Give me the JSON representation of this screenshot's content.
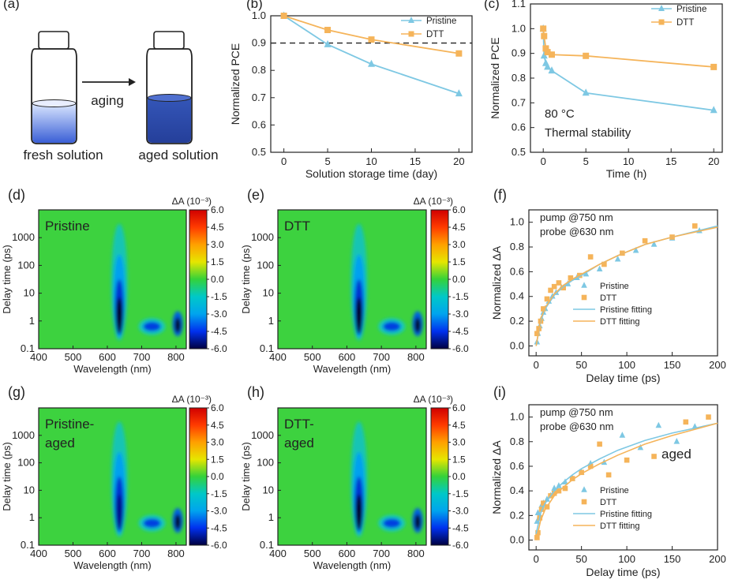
{
  "colors": {
    "pristine": "#7ec8e3",
    "dtt": "#f5b45a",
    "dash": "#222222"
  },
  "panel_labels": [
    "(a)",
    "(b)",
    "(c)",
    "(d)",
    "(e)",
    "(f)",
    "(g)",
    "(h)",
    "(i)"
  ],
  "panel_a": {
    "arrow_label": "aging",
    "fresh_label": "fresh solution",
    "aged_label": "aged solution"
  },
  "chart_data": [
    {
      "id": "b",
      "type": "line",
      "xlabel": "Solution storage time (day)",
      "ylabel": "Normalized PCE",
      "xlim": [
        -1.5,
        21.5
      ],
      "ylim": [
        0.5,
        1.0
      ],
      "xticks": [
        0,
        5,
        10,
        15,
        20
      ],
      "yticks": [
        0.5,
        0.6,
        0.7,
        0.8,
        0.9,
        1.0
      ],
      "hline": 0.9,
      "legend": [
        "Pristine",
        "DTT"
      ],
      "series": [
        {
          "name": "Pristine",
          "marker": "triangle",
          "x": [
            0,
            5,
            10,
            20
          ],
          "y": [
            1.0,
            0.895,
            0.823,
            0.715
          ]
        },
        {
          "name": "DTT",
          "marker": "square",
          "x": [
            0,
            5,
            10,
            20
          ],
          "y": [
            1.0,
            0.948,
            0.913,
            0.862
          ]
        }
      ]
    },
    {
      "id": "c",
      "type": "line",
      "xlabel": "Time (h)",
      "ylabel": "Normalized PCE",
      "xlim": [
        -1.5,
        21.0
      ],
      "ylim": [
        0.5,
        1.1
      ],
      "xticks": [
        0,
        5,
        10,
        15,
        20
      ],
      "yticks": [
        0.5,
        0.6,
        0.7,
        0.8,
        0.9,
        1.0,
        1.1
      ],
      "annotation": [
        "80 °C",
        "Thermal stability"
      ],
      "legend": [
        "Pristine",
        "DTT"
      ],
      "series": [
        {
          "name": "Pristine",
          "marker": "triangle",
          "x": [
            0,
            0.1,
            0.3,
            0.5,
            1,
            5,
            20
          ],
          "y": [
            1.0,
            0.89,
            0.86,
            0.845,
            0.83,
            0.74,
            0.67
          ]
        },
        {
          "name": "DTT",
          "marker": "square",
          "x": [
            0,
            0.1,
            0.3,
            0.5,
            1,
            5,
            20
          ],
          "y": [
            1.0,
            0.97,
            0.92,
            0.905,
            0.895,
            0.89,
            0.845
          ]
        }
      ]
    },
    {
      "id": "d",
      "type": "heatmap",
      "label": "Pristine",
      "xlabel": "Wavelength (nm)",
      "ylabel": "Delay time (ps)",
      "xticks": [
        "400",
        "500",
        "600",
        "700",
        "800"
      ],
      "yticks": [
        "0.1",
        "1",
        "10",
        "100",
        "1000"
      ],
      "colorbar_title": "ΔA (10⁻³)",
      "colorbar_ticks": [
        "6.0",
        "4.5",
        "3.0",
        "1.5",
        "0.0",
        "-1.5",
        "-3.0",
        "-4.5",
        "-6.0"
      ],
      "features": [
        {
          "center_nm": 635,
          "depth": -6.0
        },
        {
          "center_nm": 730,
          "depth": -4.0
        },
        {
          "center_nm": 805,
          "depth": -6.0
        }
      ]
    },
    {
      "id": "e",
      "type": "heatmap",
      "label": "DTT",
      "xlabel": "Wavelength (nm)",
      "ylabel": "Delay time (ps)",
      "xticks": [
        "400",
        "500",
        "600",
        "700",
        "800"
      ],
      "yticks": [
        "0.1",
        "1",
        "10",
        "100",
        "1000"
      ],
      "colorbar_title": "ΔA (10⁻³)",
      "colorbar_ticks": [
        "6.0",
        "4.5",
        "3.0",
        "1.5",
        "0.0",
        "-1.5",
        "-3.0",
        "-4.5",
        "-6.0"
      ],
      "features": [
        {
          "center_nm": 635,
          "depth": -6.0
        },
        {
          "center_nm": 730,
          "depth": -4.0
        },
        {
          "center_nm": 805,
          "depth": -6.0
        }
      ]
    },
    {
      "id": "f",
      "type": "scatter",
      "xlabel": "Delay time (ps)",
      "ylabel": "Normalized ΔA",
      "xlim": [
        -8,
        200
      ],
      "ylim": [
        -0.08,
        1.1
      ],
      "xticks": [
        0,
        50,
        100,
        150,
        200
      ],
      "yticks": [
        0.0,
        0.2,
        0.4,
        0.6,
        0.8,
        1.0
      ],
      "annotation": [
        "pump @750 nm",
        "probe @630 nm"
      ],
      "legend": [
        "Pristine",
        "DTT",
        "Pristine fitting",
        "DTT fitting"
      ],
      "series": [
        {
          "name": "Pristine",
          "marker": "triangle",
          "x": [
            1,
            2,
            4,
            6,
            8,
            10,
            14,
            18,
            22,
            28,
            35,
            45,
            55,
            70,
            90,
            110,
            130,
            150,
            180
          ],
          "y": [
            0.03,
            0.1,
            0.16,
            0.22,
            0.27,
            0.3,
            0.36,
            0.4,
            0.43,
            0.47,
            0.5,
            0.55,
            0.58,
            0.62,
            0.7,
            0.77,
            0.82,
            0.87,
            0.93
          ]
        },
        {
          "name": "DTT",
          "marker": "square",
          "x": [
            1,
            3,
            5,
            8,
            12,
            16,
            20,
            25,
            30,
            38,
            48,
            60,
            75,
            95,
            120,
            150,
            175
          ],
          "y": [
            0.1,
            0.14,
            0.2,
            0.3,
            0.38,
            0.45,
            0.48,
            0.51,
            0.47,
            0.55,
            0.57,
            0.72,
            0.66,
            0.75,
            0.85,
            0.88,
            0.97
          ]
        },
        {
          "name": "Pristine fitting",
          "type": "fit",
          "x": [
            0,
            5,
            10,
            20,
            30,
            40,
            50,
            70,
            90,
            120,
            150,
            200
          ],
          "y": [
            0.0,
            0.2,
            0.3,
            0.41,
            0.48,
            0.53,
            0.57,
            0.66,
            0.73,
            0.82,
            0.88,
            0.97
          ]
        },
        {
          "name": "DTT fitting",
          "type": "fit",
          "x": [
            0,
            5,
            10,
            20,
            30,
            40,
            50,
            70,
            90,
            120,
            150,
            200
          ],
          "y": [
            0.0,
            0.22,
            0.31,
            0.42,
            0.49,
            0.54,
            0.58,
            0.66,
            0.73,
            0.82,
            0.88,
            0.96
          ]
        }
      ]
    },
    {
      "id": "g",
      "type": "heatmap",
      "label": "Pristine-\naged",
      "xlabel": "Wavelength (nm)",
      "ylabel": "Delay time (ps)",
      "xticks": [
        "400",
        "500",
        "600",
        "700",
        "800"
      ],
      "yticks": [
        "0.1",
        "1",
        "10",
        "100",
        "1000"
      ],
      "colorbar_title": "ΔA (10⁻³)",
      "colorbar_ticks": [
        "6.0",
        "4.5",
        "3.0",
        "1.5",
        "0.0",
        "-1.5",
        "-3.0",
        "-4.5",
        "-6.0"
      ],
      "features": [
        {
          "center_nm": 635,
          "depth": -5.0
        },
        {
          "center_nm": 730,
          "depth": -3.5
        },
        {
          "center_nm": 805,
          "depth": -6.0
        }
      ]
    },
    {
      "id": "h",
      "type": "heatmap",
      "label": "DTT-\naged",
      "xlabel": "Wavelength (nm)",
      "ylabel": "Delay time (ps)",
      "xticks": [
        "400",
        "500",
        "600",
        "700",
        "800"
      ],
      "yticks": [
        "0.1",
        "1",
        "10",
        "100",
        "1000"
      ],
      "colorbar_title": "ΔA (10⁻³)",
      "colorbar_ticks": [
        "6.0",
        "4.5",
        "3.0",
        "1.5",
        "0.0",
        "-1.5",
        "-3.0",
        "-4.5",
        "-6.0"
      ],
      "features": [
        {
          "center_nm": 635,
          "depth": -6.0
        },
        {
          "center_nm": 730,
          "depth": -4.0
        },
        {
          "center_nm": 805,
          "depth": -6.0
        }
      ]
    },
    {
      "id": "i",
      "type": "scatter",
      "xlabel": "Delay time (ps)",
      "ylabel": "Normalized ΔA",
      "xlim": [
        -8,
        200
      ],
      "ylim": [
        -0.08,
        1.1
      ],
      "xticks": [
        0,
        50,
        100,
        150,
        200
      ],
      "yticks": [
        0.0,
        0.2,
        0.4,
        0.6,
        0.8,
        1.0
      ],
      "annotation": [
        "pump @750 nm",
        "probe @630 nm"
      ],
      "label": "aged",
      "legend": [
        "Pristine",
        "DTT",
        "Pristine fitting",
        "DTT fitting"
      ],
      "series": [
        {
          "name": "Pristine",
          "marker": "triangle",
          "x": [
            1,
            2,
            4,
            6,
            8,
            12,
            16,
            20,
            25,
            32,
            40,
            50,
            60,
            75,
            95,
            115,
            135,
            155,
            175
          ],
          "y": [
            0.15,
            0.22,
            0.2,
            0.28,
            0.3,
            0.33,
            0.36,
            0.42,
            0.44,
            0.47,
            0.5,
            0.55,
            0.62,
            0.63,
            0.85,
            0.75,
            0.93,
            0.8,
            0.92
          ]
        },
        {
          "name": "DTT",
          "marker": "square",
          "x": [
            1,
            2,
            4,
            6,
            8,
            12,
            16,
            20,
            25,
            32,
            40,
            50,
            60,
            70,
            80,
            100,
            130,
            165,
            190
          ],
          "y": [
            0.02,
            0.06,
            0.18,
            0.25,
            0.3,
            0.27,
            0.36,
            0.38,
            0.4,
            0.42,
            0.5,
            0.55,
            0.6,
            0.78,
            0.53,
            0.65,
            0.68,
            0.96,
            1.0
          ]
        },
        {
          "name": "Pristine fitting",
          "type": "fit",
          "x": [
            0,
            5,
            10,
            20,
            30,
            40,
            50,
            70,
            90,
            120,
            150,
            200
          ],
          "y": [
            0.05,
            0.22,
            0.3,
            0.4,
            0.47,
            0.53,
            0.58,
            0.66,
            0.73,
            0.81,
            0.87,
            0.95
          ]
        },
        {
          "name": "DTT fitting",
          "type": "fit",
          "x": [
            0,
            5,
            10,
            20,
            30,
            40,
            50,
            70,
            90,
            120,
            150,
            200
          ],
          "y": [
            0.0,
            0.16,
            0.25,
            0.36,
            0.43,
            0.49,
            0.54,
            0.62,
            0.69,
            0.78,
            0.85,
            0.95
          ]
        }
      ]
    }
  ]
}
